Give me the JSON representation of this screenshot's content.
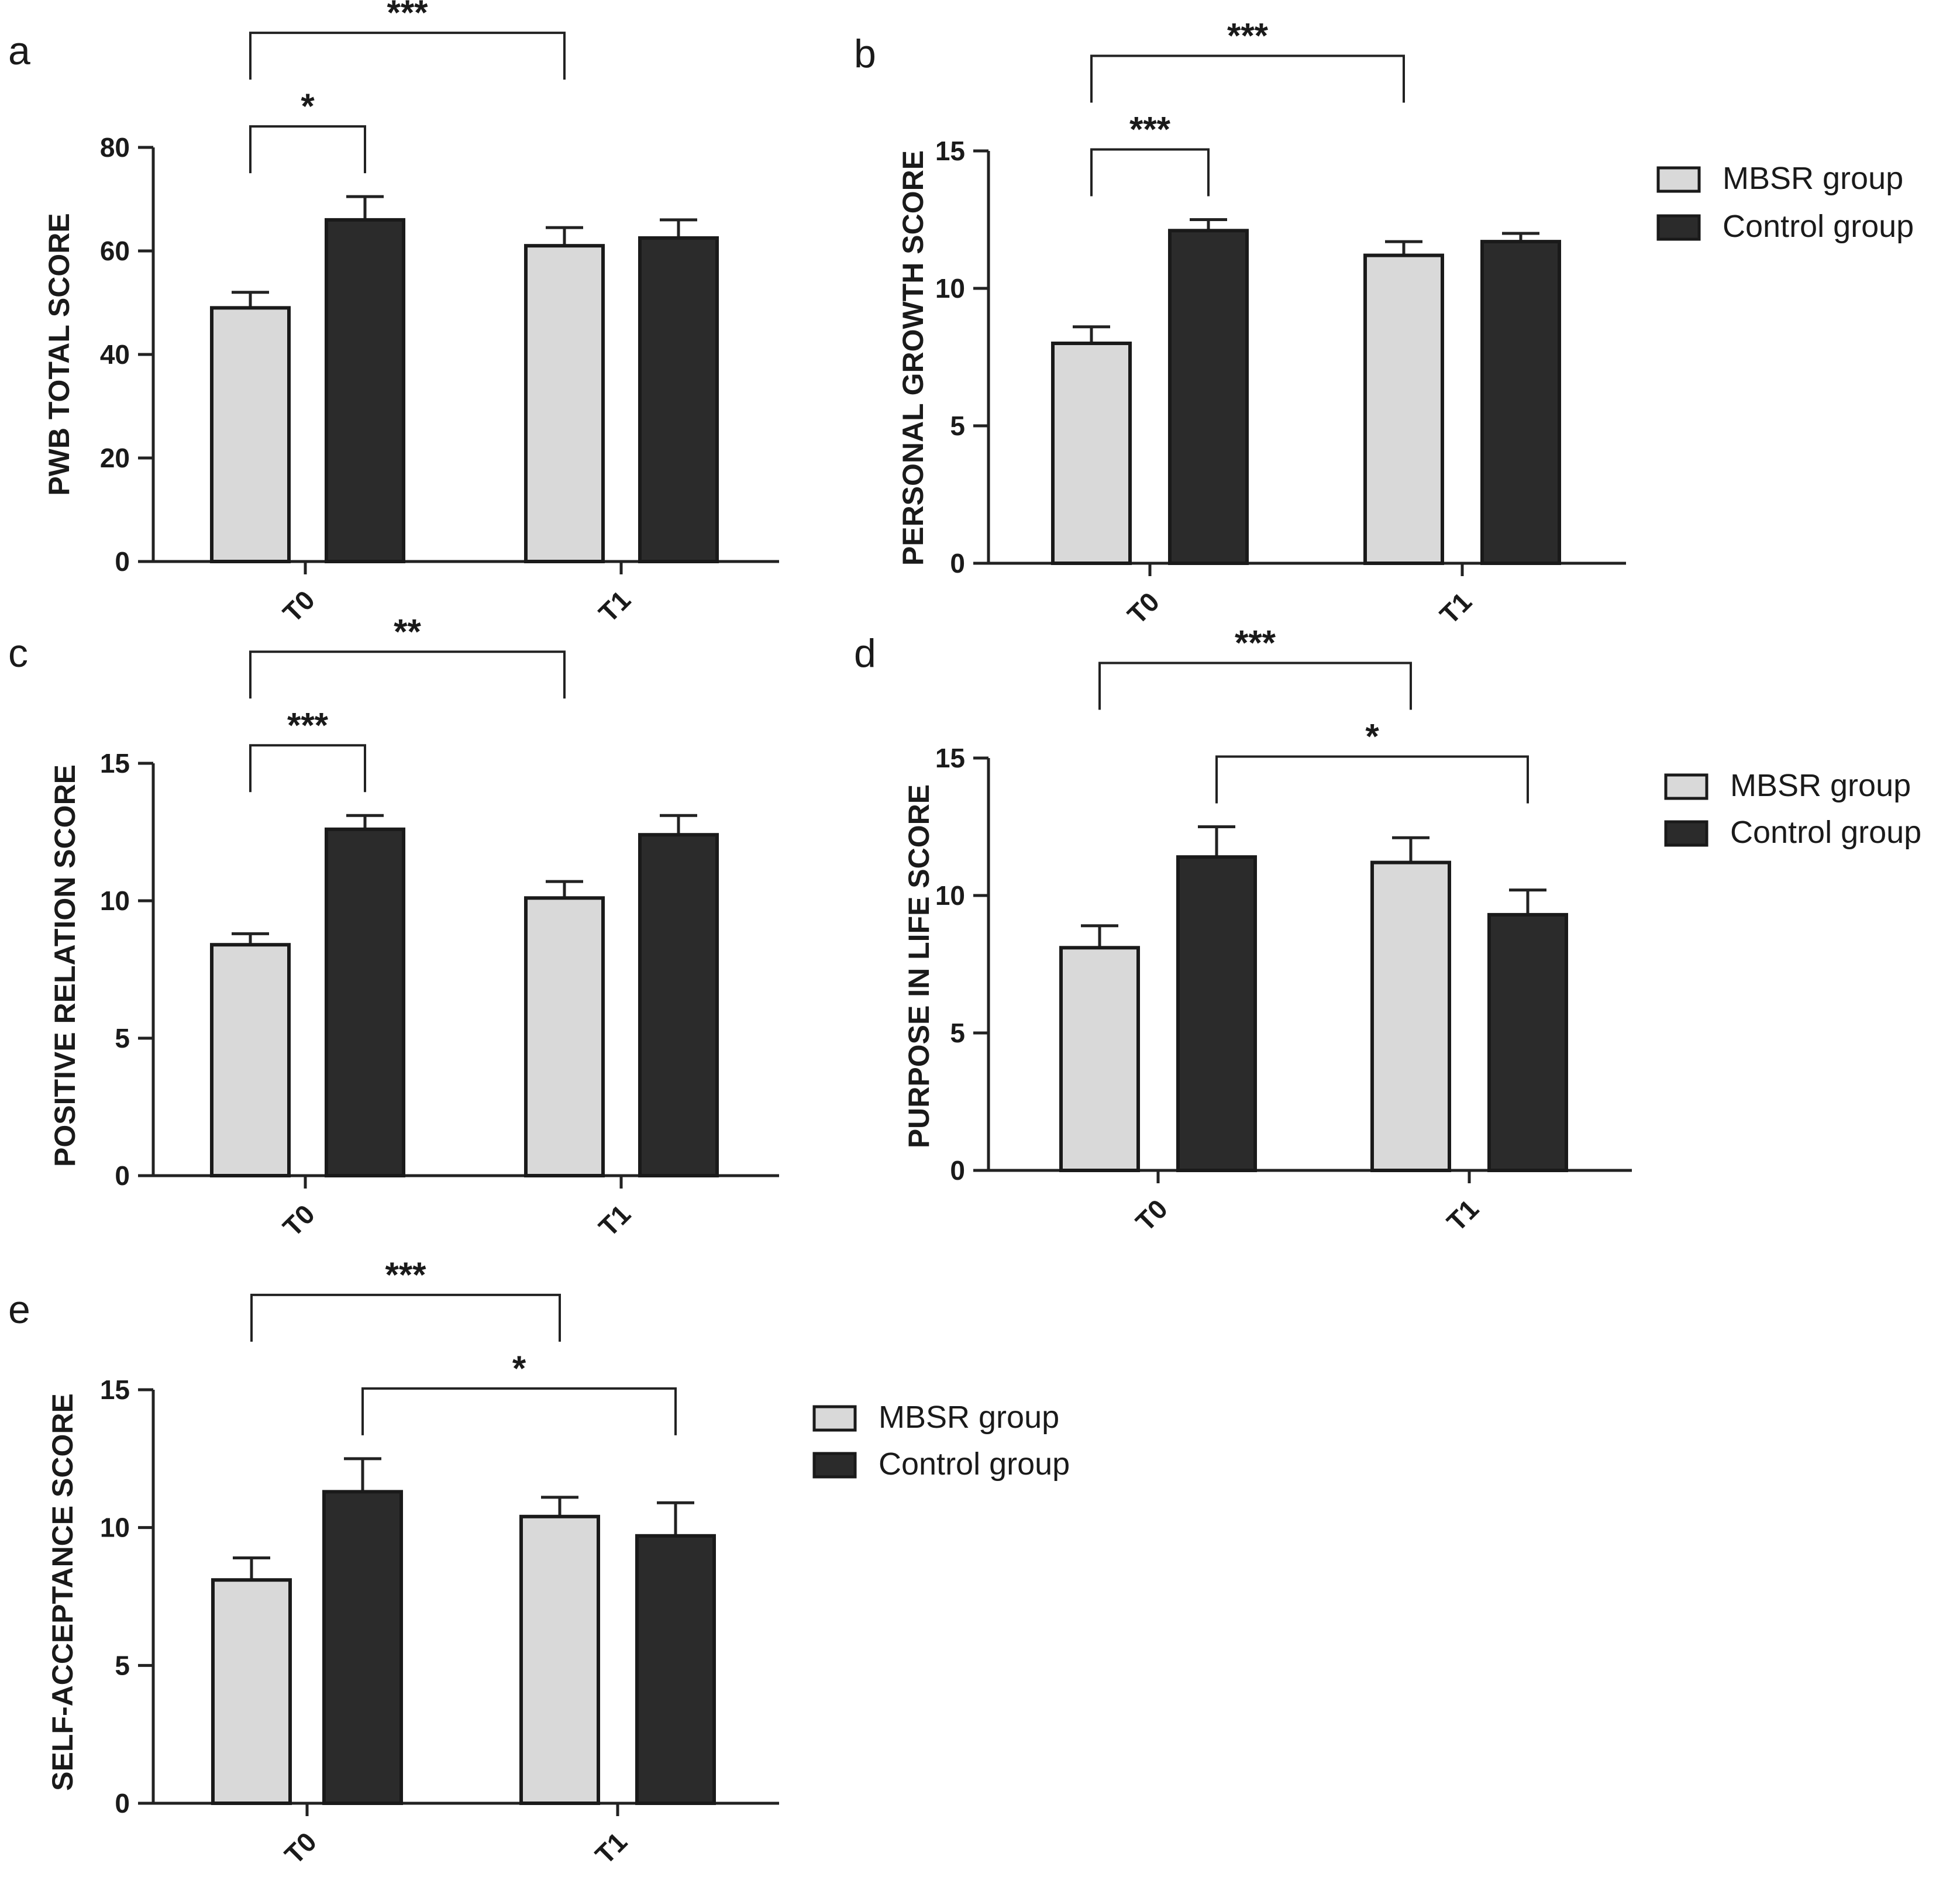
{
  "colors": {
    "mbsr": "#d9d9d9",
    "control": "#2b2b2b",
    "axis": "#222222"
  },
  "chart_data": [
    {
      "panel": "a",
      "type": "bar",
      "ylabel": "PWB TOTAL SCORE",
      "categories": [
        "T0",
        "T1"
      ],
      "ylim": [
        0,
        80
      ],
      "yticks": [
        0,
        20,
        40,
        60,
        80
      ],
      "series": [
        {
          "name": "MBSR group",
          "values": [
            49,
            61
          ],
          "errors": [
            3,
            3.5
          ]
        },
        {
          "name": "Control group",
          "values": [
            66,
            62.5
          ],
          "errors": [
            4.5,
            3.5
          ]
        }
      ],
      "significance": [
        {
          "from": 0,
          "to": 1,
          "label": "*",
          "level": 0
        },
        {
          "from": 0,
          "to": 2,
          "label": "***",
          "level": 1
        }
      ],
      "legend": false
    },
    {
      "panel": "b",
      "type": "bar",
      "ylabel": "PERSONAL GROWTH SCORE",
      "categories": [
        "T0",
        "T1"
      ],
      "ylim": [
        0,
        15
      ],
      "yticks": [
        0,
        5,
        10,
        15
      ],
      "series": [
        {
          "name": "MBSR group",
          "values": [
            8,
            11.2
          ],
          "errors": [
            0.6,
            0.5
          ]
        },
        {
          "name": "Control group",
          "values": [
            12.1,
            11.7
          ],
          "errors": [
            0.4,
            0.3
          ]
        }
      ],
      "significance": [
        {
          "from": 0,
          "to": 1,
          "label": "***",
          "level": 0
        },
        {
          "from": 0,
          "to": 2,
          "label": "***",
          "level": 1
        }
      ],
      "legend": true,
      "legend_entries": [
        "MBSR group",
        "Control group"
      ]
    },
    {
      "panel": "c",
      "type": "bar",
      "ylabel": "POSITIVE RELATION SCORE",
      "categories": [
        "T0",
        "T1"
      ],
      "ylim": [
        0,
        15
      ],
      "yticks": [
        0,
        5,
        10,
        15
      ],
      "series": [
        {
          "name": "MBSR group",
          "values": [
            8.4,
            10.1
          ],
          "errors": [
            0.4,
            0.6
          ]
        },
        {
          "name": "Control group",
          "values": [
            12.6,
            12.4
          ],
          "errors": [
            0.5,
            0.7
          ]
        }
      ],
      "significance": [
        {
          "from": 0,
          "to": 1,
          "label": "***",
          "level": 0
        },
        {
          "from": 0,
          "to": 2,
          "label": "**",
          "level": 1
        }
      ],
      "legend": false
    },
    {
      "panel": "d",
      "type": "bar",
      "ylabel": "PURPOSE IN LIFE SCORE",
      "categories": [
        "T0",
        "T1"
      ],
      "ylim": [
        0,
        15
      ],
      "yticks": [
        0,
        5,
        10,
        15
      ],
      "series": [
        {
          "name": "MBSR group",
          "values": [
            8.1,
            11.2
          ],
          "errors": [
            0.8,
            0.9
          ]
        },
        {
          "name": "Control group",
          "values": [
            11.4,
            9.3
          ],
          "errors": [
            1.1,
            0.9
          ]
        }
      ],
      "significance": [
        {
          "from": 0,
          "to": 2,
          "label": "***",
          "level": 1
        },
        {
          "from": 1,
          "to": 3,
          "label": "*",
          "level": 0
        }
      ],
      "legend": true,
      "legend_entries": [
        "MBSR group",
        "Control group"
      ]
    },
    {
      "panel": "e",
      "type": "bar",
      "ylabel": "SELF-ACCEPTANCE SCORE",
      "categories": [
        "T0",
        "T1"
      ],
      "ylim": [
        0,
        15
      ],
      "yticks": [
        0,
        5,
        10,
        15
      ],
      "series": [
        {
          "name": "MBSR group",
          "values": [
            8.1,
            10.4
          ],
          "errors": [
            0.8,
            0.7
          ]
        },
        {
          "name": "Control group",
          "values": [
            11.3,
            9.7
          ],
          "errors": [
            1.2,
            1.2
          ]
        }
      ],
      "significance": [
        {
          "from": 0,
          "to": 2,
          "label": "***",
          "level": 1
        },
        {
          "from": 1,
          "to": 3,
          "label": "*",
          "level": 0
        }
      ],
      "legend": true,
      "legend_entries": [
        "MBSR group",
        "Control group"
      ]
    }
  ]
}
